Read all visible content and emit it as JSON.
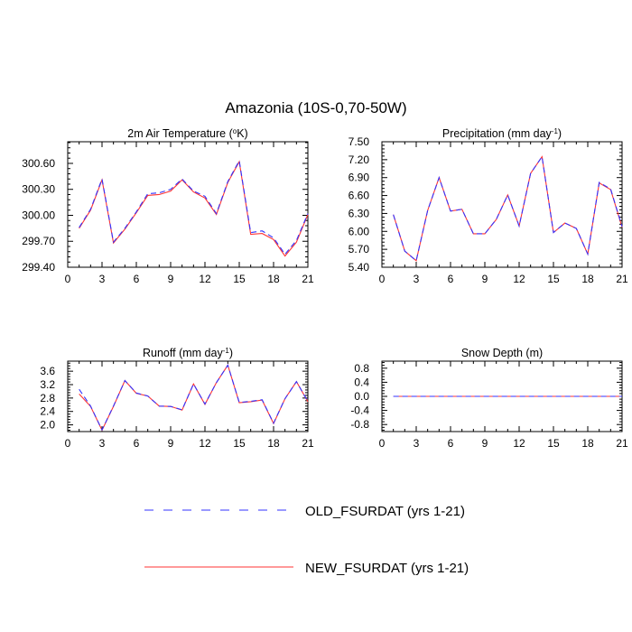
{
  "figure": {
    "title": "Amazonia (10S-0,70-50W)",
    "series_styles": {
      "old": {
        "color": "#3333ff",
        "dashed": true
      },
      "new": {
        "color": "#ff3333",
        "dashed": false
      }
    }
  },
  "legend": [
    {
      "key": "old",
      "label": "OLD_FSURDAT (yrs 1-21)"
    },
    {
      "key": "new",
      "label": "NEW_FSURDAT (yrs 1-21)"
    }
  ],
  "chart_data": [
    {
      "type": "line",
      "title": "2m Air Temperature (°K)",
      "title_parts": {
        "main": "2m Air Temperature (",
        "sup": "o",
        "tail": "K)"
      },
      "xlim": [
        0,
        21
      ],
      "ylim": [
        299.4,
        300.85
      ],
      "xticks": [
        0,
        3,
        6,
        9,
        12,
        15,
        18,
        21
      ],
      "yticks": [
        299.4,
        299.7,
        300.0,
        300.3,
        300.6
      ],
      "ytick_labels": [
        "299.40",
        "299.70",
        "300.00",
        "300.30",
        "300.60"
      ],
      "ytick_side": "left",
      "x": [
        1,
        2,
        3,
        4,
        5,
        6,
        7,
        8,
        9,
        10,
        11,
        12,
        13,
        14,
        15,
        16,
        17,
        18,
        19,
        20,
        21
      ],
      "series": [
        {
          "name": "OLD_FSURDAT (yrs 1-21)",
          "key": "old",
          "values": [
            299.86,
            300.07,
            300.42,
            299.69,
            299.85,
            300.04,
            300.25,
            300.26,
            300.3,
            300.42,
            300.28,
            300.22,
            300.02,
            300.39,
            300.63,
            299.8,
            299.82,
            299.74,
            299.55,
            299.71,
            300.02
          ]
        },
        {
          "name": "NEW_FSURDAT (yrs 1-21)",
          "key": "new",
          "values": [
            299.85,
            300.06,
            300.41,
            299.68,
            299.84,
            300.03,
            300.23,
            300.24,
            300.28,
            300.41,
            300.27,
            300.2,
            300.01,
            300.38,
            300.62,
            299.78,
            299.79,
            299.72,
            299.53,
            299.69,
            300.01
          ]
        }
      ]
    },
    {
      "type": "line",
      "title": "Precipitation (mm day-1)",
      "title_parts": {
        "main": "Precipitation (mm day",
        "sup": "-1",
        "tail": ")"
      },
      "xlim": [
        0,
        21
      ],
      "ylim": [
        5.4,
        7.5
      ],
      "xticks": [
        0,
        3,
        6,
        9,
        12,
        15,
        18,
        21
      ],
      "yticks": [
        5.4,
        5.7,
        6.0,
        6.3,
        6.6,
        6.9,
        7.2,
        7.5
      ],
      "ytick_labels": [
        "5.40",
        "5.70",
        "6.00",
        "6.30",
        "6.60",
        "6.90",
        "7.20",
        "7.50"
      ],
      "ytick_side": "left",
      "x": [
        1,
        2,
        3,
        4,
        5,
        6,
        7,
        8,
        9,
        10,
        11,
        12,
        13,
        14,
        15,
        16,
        17,
        18,
        19,
        20,
        21
      ],
      "series": [
        {
          "name": "OLD_FSURDAT (yrs 1-21)",
          "key": "old",
          "values": [
            6.28,
            5.67,
            5.51,
            6.35,
            6.9,
            6.34,
            6.37,
            5.96,
            5.96,
            6.2,
            6.61,
            6.09,
            6.97,
            7.25,
            5.98,
            6.14,
            6.05,
            5.62,
            6.82,
            6.71,
            6.08
          ]
        },
        {
          "name": "NEW_FSURDAT (yrs 1-21)",
          "key": "new",
          "values": [
            6.28,
            5.67,
            5.51,
            6.35,
            6.9,
            6.34,
            6.37,
            5.96,
            5.96,
            6.2,
            6.61,
            6.09,
            6.97,
            7.25,
            5.98,
            6.14,
            6.05,
            5.62,
            6.81,
            6.7,
            6.07
          ]
        }
      ]
    },
    {
      "type": "line",
      "title": "Runoff (mm day-1)",
      "title_parts": {
        "main": "Runoff (mm day",
        "sup": "-1",
        "tail": ")"
      },
      "xlim": [
        0,
        21
      ],
      "ylim": [
        1.8,
        3.9
      ],
      "xticks": [
        0,
        3,
        6,
        9,
        12,
        15,
        18,
        21
      ],
      "yticks": [
        2.0,
        2.4,
        2.8,
        3.2,
        3.6
      ],
      "ytick_labels": [
        "2.0",
        "2.4",
        "2.8",
        "3.2",
        "3.6"
      ],
      "ytick_side": "left",
      "x": [
        1,
        2,
        3,
        4,
        5,
        6,
        7,
        8,
        9,
        10,
        11,
        12,
        13,
        14,
        15,
        16,
        17,
        18,
        19,
        20,
        21
      ],
      "series": [
        {
          "name": "OLD_FSURDAT (yrs 1-21)",
          "key": "old",
          "values": [
            3.06,
            2.56,
            1.85,
            2.56,
            3.32,
            2.95,
            2.86,
            2.56,
            2.55,
            2.45,
            3.22,
            2.62,
            3.26,
            3.78,
            2.67,
            2.7,
            2.75,
            2.05,
            2.78,
            3.29,
            2.7
          ]
        },
        {
          "name": "NEW_FSURDAT (yrs 1-21)",
          "key": "new",
          "values": [
            2.92,
            2.55,
            1.84,
            2.55,
            3.32,
            2.94,
            2.86,
            2.56,
            2.55,
            2.44,
            3.22,
            2.61,
            3.26,
            3.78,
            2.66,
            2.69,
            2.74,
            2.04,
            2.78,
            3.29,
            2.69
          ]
        }
      ]
    },
    {
      "type": "line",
      "title": "Snow Depth (m)",
      "title_parts": {
        "main": "Snow Depth (m)",
        "sup": "",
        "tail": ""
      },
      "xlim": [
        0,
        21
      ],
      "ylim": [
        -1.0,
        1.0
      ],
      "xticks": [
        0,
        3,
        6,
        9,
        12,
        15,
        18,
        21
      ],
      "yticks": [
        -0.8,
        -0.4,
        0.0,
        0.4,
        0.8
      ],
      "ytick_labels": [
        "-0.8",
        "-0.4",
        "0.0",
        "0.4",
        "0.8"
      ],
      "ytick_side": "left",
      "x": [
        1,
        2,
        3,
        4,
        5,
        6,
        7,
        8,
        9,
        10,
        11,
        12,
        13,
        14,
        15,
        16,
        17,
        18,
        19,
        20,
        21
      ],
      "series": [
        {
          "name": "OLD_FSURDAT (yrs 1-21)",
          "key": "old",
          "values": [
            0,
            0,
            0,
            0,
            0,
            0,
            0,
            0,
            0,
            0,
            0,
            0,
            0,
            0,
            0,
            0,
            0,
            0,
            0,
            0,
            0
          ]
        },
        {
          "name": "NEW_FSURDAT (yrs 1-21)",
          "key": "new",
          "values": [
            0,
            0,
            0,
            0,
            0,
            0,
            0,
            0,
            0,
            0,
            0,
            0,
            0,
            0,
            0,
            0,
            0,
            0,
            0,
            0,
            0
          ]
        }
      ]
    }
  ]
}
